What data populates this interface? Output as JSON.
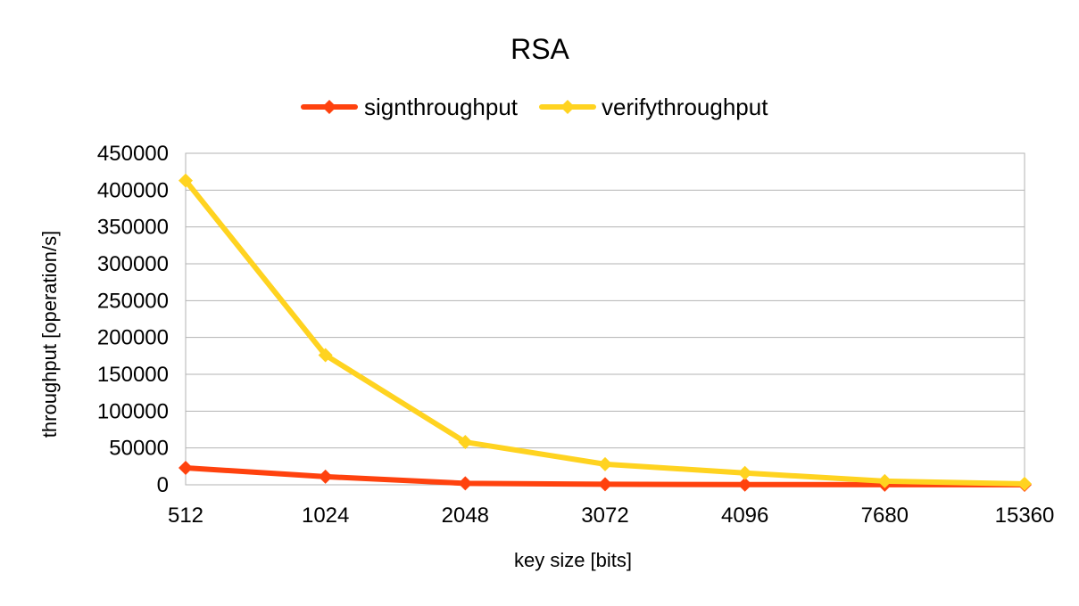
{
  "chart_data": {
    "type": "line",
    "title": "RSA",
    "xlabel": "key size [bits]",
    "ylabel": "throughput [operation/s]",
    "categories": [
      "512",
      "1024",
      "2048",
      "3072",
      "4096",
      "7680",
      "15360"
    ],
    "series": [
      {
        "name": "signthroughput",
        "color": "#ff420e",
        "values": [
          23000,
          11000,
          2000,
          700,
          300,
          100,
          20
        ]
      },
      {
        "name": "verifythroughput",
        "color": "#ffd320",
        "values": [
          413000,
          176000,
          58000,
          28000,
          16000,
          5000,
          1300
        ]
      }
    ],
    "ylim": [
      0,
      450000
    ],
    "yticks": [
      "0",
      "50000",
      "100000",
      "150000",
      "200000",
      "250000",
      "300000",
      "350000",
      "400000",
      "450000"
    ],
    "grid": true,
    "legend": "top"
  }
}
